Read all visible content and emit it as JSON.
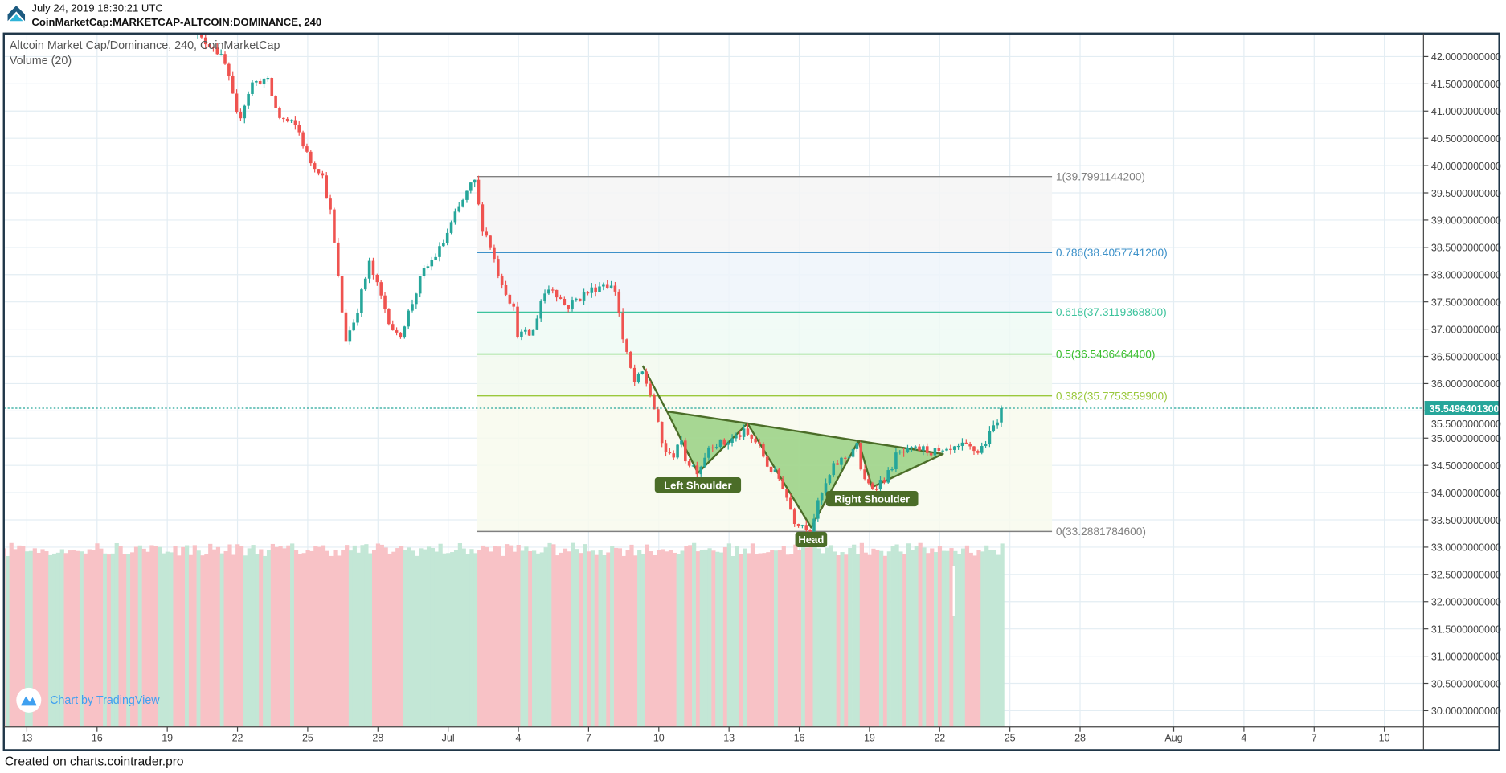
{
  "header": {
    "timestamp": "July 24, 2019 18:30:21 UTC",
    "symbol": "CoinMarketCap:MARKETCAP-ALTCOIN:DOMINANCE, 240"
  },
  "legend": {
    "main": "Altcoin Market Cap/Dominance, 240, CoinMarketCap",
    "volume": "Volume (20)"
  },
  "watermark": "Chart by TradingView",
  "footer": "Created on charts.cointrader.pro",
  "colors": {
    "up": "#26a69a",
    "down": "#ef5350",
    "vol_up": "#c3e7d6",
    "vol_down": "#f8c2c6",
    "grid": "#e3edf3",
    "frame": "#1f3648",
    "pattern": "#4b6d28",
    "pattern_fill": "#9ed48a"
  },
  "chart_data": {
    "type": "candlestick",
    "title": "Altcoin Market Cap/Dominance, 240, CoinMarketCap",
    "x_unit": "days since 2019-06-13",
    "interval_hours": 4,
    "ylim": [
      29.7,
      42.45
    ],
    "xlim": [
      -1.0,
      59.6
    ],
    "price_ticks": [
      "42.0000000000",
      "41.5000000000",
      "41.0000000000",
      "40.5000000000",
      "40.0000000000",
      "39.5000000000",
      "39.0000000000",
      "38.5000000000",
      "38.0000000000",
      "37.5000000000",
      "37.0000000000",
      "36.5000000000",
      "36.0000000000",
      "35.5000000000",
      "35.0000000000",
      "34.5000000000",
      "34.0000000000",
      "33.5000000000",
      "33.0000000000",
      "32.5000000000",
      "32.0000000000",
      "31.5000000000",
      "31.0000000000",
      "30.5000000000",
      "30.0000000000"
    ],
    "time_ticks": [
      {
        "label": "13",
        "day": 0
      },
      {
        "label": "16",
        "day": 3
      },
      {
        "label": "19",
        "day": 6
      },
      {
        "label": "22",
        "day": 9
      },
      {
        "label": "25",
        "day": 12
      },
      {
        "label": "28",
        "day": 15
      },
      {
        "label": "Jul",
        "day": 18
      },
      {
        "label": "4",
        "day": 21
      },
      {
        "label": "7",
        "day": 24
      },
      {
        "label": "10",
        "day": 27
      },
      {
        "label": "13",
        "day": 30
      },
      {
        "label": "16",
        "day": 33
      },
      {
        "label": "19",
        "day": 36
      },
      {
        "label": "22",
        "day": 39
      },
      {
        "label": "25",
        "day": 42
      },
      {
        "label": "28",
        "day": 45
      },
      {
        "label": "Aug",
        "day": 49
      },
      {
        "label": "4",
        "day": 52
      },
      {
        "label": "7",
        "day": 55
      },
      {
        "label": "10",
        "day": 58
      }
    ],
    "price_path": [
      [
        6.8,
        42.7
      ],
      [
        7.46,
        42.3
      ],
      [
        8.0,
        42.2
      ],
      [
        8.52,
        41.8
      ],
      [
        9.02,
        40.8
      ],
      [
        9.59,
        41.5
      ],
      [
        10.25,
        41.6
      ],
      [
        10.74,
        40.9
      ],
      [
        11.56,
        40.7
      ],
      [
        12.05,
        40.1
      ],
      [
        12.58,
        39.9
      ],
      [
        12.99,
        39.1
      ],
      [
        13.28,
        38.0
      ],
      [
        13.61,
        36.8
      ],
      [
        14.02,
        37.2
      ],
      [
        14.63,
        38.2
      ],
      [
        15.04,
        37.7
      ],
      [
        15.45,
        37.2
      ],
      [
        15.86,
        36.8
      ],
      [
        16.39,
        37.4
      ],
      [
        16.89,
        38.0
      ],
      [
        17.7,
        38.5
      ],
      [
        18.32,
        39.1
      ],
      [
        18.93,
        39.6
      ],
      [
        19.22,
        39.75
      ],
      [
        19.34,
        39.0
      ],
      [
        19.75,
        38.6
      ],
      [
        20.16,
        38.0
      ],
      [
        20.78,
        37.4
      ],
      [
        20.98,
        36.9
      ],
      [
        21.6,
        36.9
      ],
      [
        22.01,
        37.6
      ],
      [
        22.42,
        37.8
      ],
      [
        23.03,
        37.4
      ],
      [
        23.65,
        37.6
      ],
      [
        24.67,
        37.85
      ],
      [
        25.2,
        37.7
      ],
      [
        25.41,
        36.9
      ],
      [
        25.7,
        36.4
      ],
      [
        25.98,
        36.0
      ],
      [
        26.31,
        36.2
      ],
      [
        26.72,
        35.7
      ],
      [
        27.13,
        34.9
      ],
      [
        27.54,
        34.6
      ],
      [
        27.87,
        35.0
      ],
      [
        28.16,
        34.6
      ],
      [
        28.69,
        34.4
      ],
      [
        29.18,
        34.9
      ],
      [
        29.8,
        34.9
      ],
      [
        30.61,
        35.1
      ],
      [
        31.23,
        34.9
      ],
      [
        31.64,
        34.5
      ],
      [
        32.25,
        34.2
      ],
      [
        32.79,
        33.5
      ],
      [
        33.48,
        33.35
      ],
      [
        33.89,
        33.9
      ],
      [
        34.51,
        34.5
      ],
      [
        35.12,
        34.7
      ],
      [
        35.45,
        34.9
      ],
      [
        35.74,
        34.2
      ],
      [
        36.15,
        34.1
      ],
      [
        36.76,
        34.3
      ],
      [
        37.17,
        34.7
      ],
      [
        38.2,
        34.8
      ],
      [
        39.22,
        34.7
      ],
      [
        40.04,
        34.85
      ],
      [
        40.66,
        34.75
      ],
      [
        41.07,
        35.0
      ],
      [
        41.39,
        35.3
      ],
      [
        41.64,
        35.55
      ]
    ],
    "volume": {
      "start_day": -1.0,
      "end_day": 41.67,
      "relative_level_range": [
        0.9,
        0.97
      ],
      "spike_day": 39.6
    },
    "last_price": "35.5496401300",
    "last_price_value": 35.54964013,
    "fibonacci": {
      "start_day": 19.22,
      "end_day": 43.8,
      "levels": [
        {
          "ratio": 1,
          "price": 39.79911442,
          "label": "1(39.7991144200)",
          "color": "#808080",
          "fill": "#f4f4f4"
        },
        {
          "ratio": 0.786,
          "price": 38.40577412,
          "label": "0.786(38.4057741200)",
          "color": "#3d91c9",
          "fill": "#eef5fa"
        },
        {
          "ratio": 0.618,
          "price": 37.31193688,
          "label": "0.618(37.3119368800)",
          "color": "#3cc39c",
          "fill": "#eefaf4"
        },
        {
          "ratio": 0.5,
          "price": 36.54364644,
          "label": "0.5(36.5436464400)",
          "color": "#3cbf30",
          "fill": "#f2f9ee"
        },
        {
          "ratio": 0.382,
          "price": 35.77535599,
          "label": "0.382(35.7753559900)",
          "color": "#9ac83c",
          "fill": "#f8faed"
        },
        {
          "ratio": 0,
          "price": 33.28817846,
          "label": "0(33.2881784600)",
          "color": "#808080",
          "fill": null
        }
      ]
    },
    "pattern": {
      "name": "inverse head and shoulders",
      "entry": [
        26.31,
        36.33
      ],
      "points": {
        "p1": [
          27.35,
          35.49
        ],
        "ls": [
          28.67,
          34.36
        ],
        "p2": [
          30.79,
          35.27
        ],
        "head": [
          33.51,
          33.36
        ],
        "p3": [
          35.53,
          34.95
        ],
        "rs": [
          36.11,
          34.1
        ],
        "p4": [
          39.14,
          34.71
        ]
      },
      "labels": [
        {
          "text": "Left Shoulder",
          "day": 28.67,
          "price": 34.14
        },
        {
          "text": "Head",
          "day": 33.51,
          "price": 33.14
        },
        {
          "text": "Right Shoulder",
          "day": 36.11,
          "price": 33.89
        }
      ]
    }
  }
}
